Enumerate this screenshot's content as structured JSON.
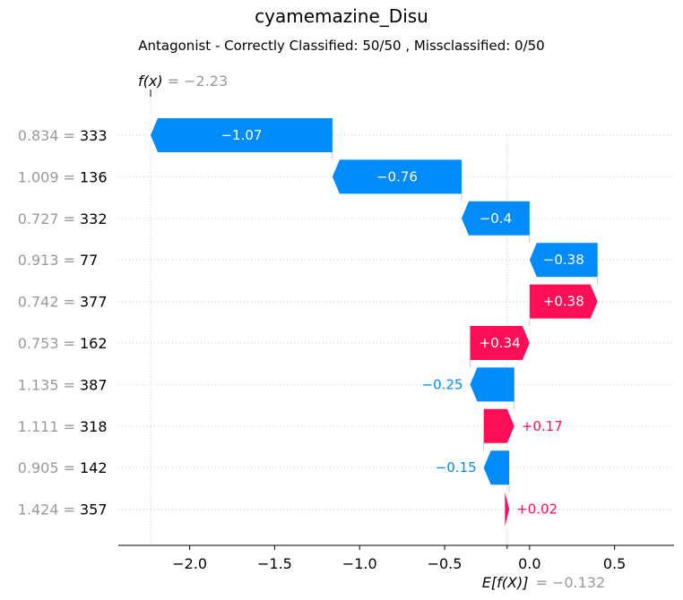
{
  "title": "cyamemazine_Disu",
  "subtitle": "Antagonist - Correctly Classified: 50/50 , Missclassified: 0/50",
  "colors": {
    "positive": "#ff0d57",
    "negative": "#008bfb",
    "muted": "#999999",
    "axis": "#000000"
  },
  "chart_data": {
    "type": "waterfall",
    "title": "cyamemazine_Disu",
    "subtitle": "Antagonist - Correctly Classified: 50/50 , Missclassified: 0/50",
    "fx": {
      "label": "f(x)",
      "value_text": "= −2.23",
      "value": -2.23
    },
    "expected": {
      "label": "E[f(X)]",
      "value_text": "= −0.132",
      "value": -0.132
    },
    "xlim": [
      -2.42,
      0.85
    ],
    "xticks": [
      -2.0,
      -1.5,
      -1.0,
      -0.5,
      0.0,
      0.5
    ],
    "xtick_labels": [
      "−2.0",
      "−1.5",
      "−1.0",
      "−0.5",
      "0.0",
      "0.5"
    ],
    "features": [
      {
        "value": "0.834 =",
        "name": "333",
        "start": -1.16,
        "end": -2.23,
        "label": "−1.07"
      },
      {
        "value": "1.009 =",
        "name": "136",
        "start": -0.4,
        "end": -1.16,
        "label": "−0.76"
      },
      {
        "value": "0.727 =",
        "name": "332",
        "start": 0.0,
        "end": -0.4,
        "label": "−0.4"
      },
      {
        "value": "0.913 =",
        "name": "77",
        "start": 0.4,
        "end": 0.0,
        "label": "−0.38"
      },
      {
        "value": "0.742 =",
        "name": "377",
        "start": 0.0,
        "end": 0.4,
        "label": "+0.38"
      },
      {
        "value": "0.753 =",
        "name": "162",
        "start": -0.35,
        "end": 0.0,
        "label": "+0.34"
      },
      {
        "value": "1.135 =",
        "name": "387",
        "start": -0.09,
        "end": -0.35,
        "label": "−0.25"
      },
      {
        "value": "1.111 =",
        "name": "318",
        "start": -0.27,
        "end": -0.09,
        "label": "+0.17"
      },
      {
        "value": "0.905 =",
        "name": "142",
        "start": -0.12,
        "end": -0.27,
        "label": "−0.15"
      },
      {
        "value": "1.424 =",
        "name": "357",
        "start": -0.145,
        "end": -0.12,
        "label": "+0.02"
      }
    ]
  }
}
